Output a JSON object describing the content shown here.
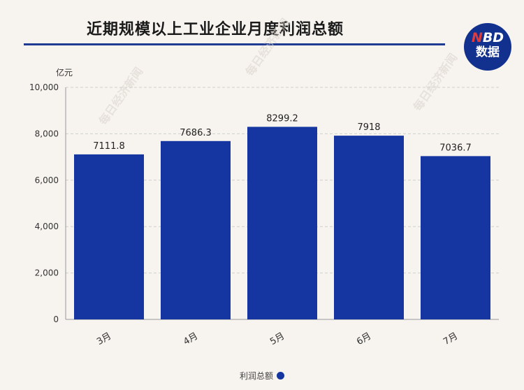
{
  "header": {
    "title": "近期规模以上工业企业月度利润总额",
    "logo_line1_accent": "N",
    "logo_line1_rest": "BD",
    "logo_line2": "数据"
  },
  "chart_data": {
    "type": "bar",
    "categories": [
      "3月",
      "4月",
      "5月",
      "6月",
      "7月"
    ],
    "series": [
      {
        "name": "利润总额",
        "values": [
          7111.8,
          7686.3,
          8299.2,
          7918,
          7036.7
        ]
      }
    ],
    "data_labels": [
      "7111.8",
      "7686.3",
      "8299.2",
      "7918",
      "7036.7"
    ],
    "ylabel": "亿元",
    "ylim": [
      0,
      10000
    ],
    "yticks": [
      0,
      2000,
      4000,
      6000,
      8000,
      10000
    ],
    "ytick_labels": [
      "0",
      "2,000",
      "4,000",
      "6,000",
      "8,000",
      "10,000"
    ],
    "grid": true,
    "legend_position": "bottom-center",
    "bar_color": "#1535a0"
  },
  "watermark": "每日经济新闻"
}
